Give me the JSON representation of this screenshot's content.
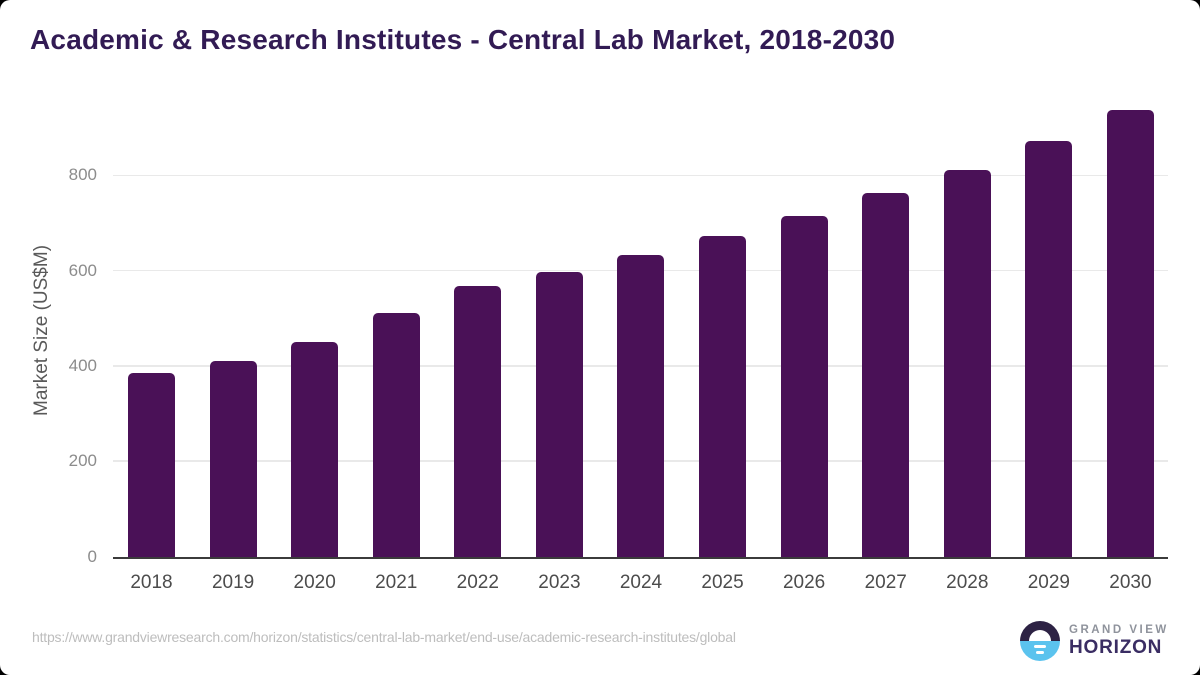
{
  "header": {
    "title": "Academic & Research Institutes - Central Lab Market, 2018-2030"
  },
  "chart_data": {
    "type": "bar",
    "title": "Academic & Research Institutes - Central Lab Market, 2018-2030",
    "categories": [
      "2018",
      "2019",
      "2020",
      "2021",
      "2022",
      "2023",
      "2024",
      "2025",
      "2026",
      "2027",
      "2028",
      "2029",
      "2030"
    ],
    "values": [
      386,
      411,
      450,
      511,
      567,
      597,
      633,
      672,
      714,
      762,
      812,
      871,
      936
    ],
    "xlabel": "",
    "ylabel": "Market Size (US$M)",
    "yticks": [
      0,
      200,
      400,
      600,
      800
    ],
    "ylim": [
      0,
      960
    ],
    "grid": true,
    "legend": false
  },
  "footer": {
    "source_url": "https://www.grandviewresearch.com/horizon/statistics/central-lab-market/end-use/academic-research-institutes/global",
    "logo_line1": "GRAND VIEW",
    "logo_line2": "HORIZON"
  },
  "colors": {
    "title": "#321b54",
    "bar": "#4a1157",
    "gridline": "#e9e9e9",
    "axis_line": "#3b3b3b",
    "y_tick_label": "#8c8c8c",
    "x_tick_label": "#4c4c4c",
    "y_axis_title": "#595959",
    "source_url": "#bdbdbd",
    "logo_gray": "#8f939c",
    "logo_purple": "#3a2d63",
    "logo_dark": "#2d2244",
    "logo_blue": "#5bc3ee"
  }
}
